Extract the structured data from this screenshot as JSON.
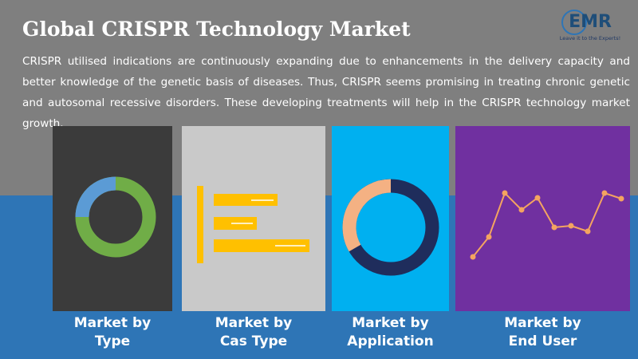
{
  "header": {
    "title": "Global CRISPR Technology Market",
    "description": "CRISPR utilised indications are continuously expanding due to enhancements in the delivery capacity and better knowledge of the genetic basis of diseases. Thus, CRISPR seems promising in treating chronic genetic and autosomal recessive disorders. These developing treatments will help in the CRISPR technology market growth."
  },
  "logo": {
    "name": "EMR",
    "tagline": "Leave it to the Experts!"
  },
  "panels": [
    {
      "label_lines": [
        "Market by",
        "Type"
      ]
    },
    {
      "label_lines": [
        "Market by",
        "Cas Type"
      ]
    },
    {
      "label_lines": [
        "Market by",
        "Application"
      ]
    },
    {
      "label_lines": [
        "Market by",
        "End User"
      ]
    }
  ]
}
